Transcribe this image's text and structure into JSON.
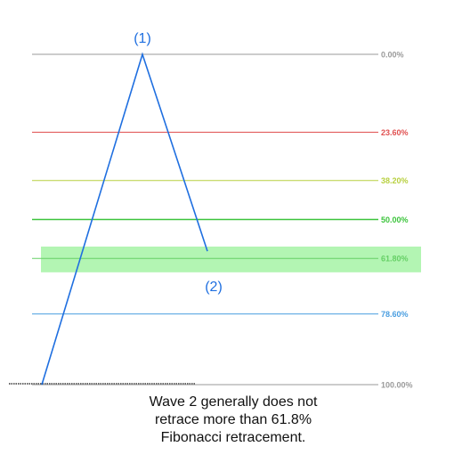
{
  "chart_data": {
    "type": "line",
    "categories": [
      null,
      "(1)",
      "(2)"
    ],
    "series": [
      {
        "color": "#1f6fe0",
        "values": [
          100,
          0,
          59.6
        ]
      }
    ],
    "ylim": [
      100,
      0
    ],
    "yticks": [
      {
        "value": 0,
        "label": "0.00%"
      },
      {
        "value": 23.6,
        "label": "23.60%"
      },
      {
        "value": 38.2,
        "label": "38.20%"
      },
      {
        "value": 50,
        "label": "50.00%"
      },
      {
        "value": 61.8,
        "label": "61.80%"
      },
      {
        "value": 78.6,
        "label": "78.60%"
      },
      {
        "value": 100,
        "label": "100.00%"
      }
    ],
    "tick_colors": [
      "#9a9a9a",
      "#e05050",
      "#b8d040",
      "#3cc43c",
      "#66d066",
      "#4a9ee0",
      "#9a9a9a"
    ],
    "highlight": [
      58.2,
      66.0
    ],
    "highlight_color": "#b3f5b3",
    "caption": [
      "Wave 2 generally does not",
      "retrace more than 61.8%",
      "Fibonacci retracement."
    ]
  }
}
